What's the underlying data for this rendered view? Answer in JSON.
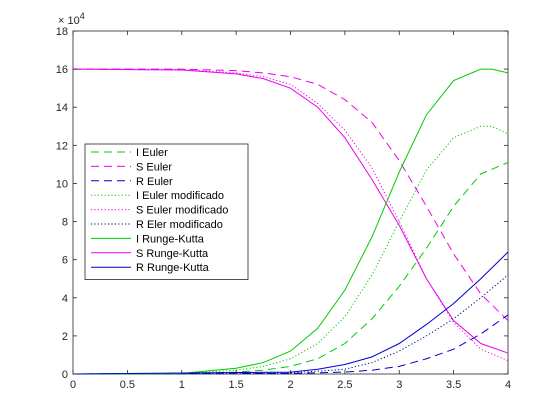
{
  "chart_data": {
    "type": "line",
    "title": "",
    "xlabel": "",
    "ylabel": "",
    "y_exponent_label": "× 10",
    "y_exponent_power": "4",
    "xlim": [
      0,
      4
    ],
    "ylim": [
      0,
      18
    ],
    "xticks": [
      "0",
      "0.5",
      "1",
      "1.5",
      "2",
      "2.5",
      "3",
      "3.5",
      "4"
    ],
    "yticks": [
      "0",
      "2",
      "4",
      "6",
      "8",
      "10",
      "12",
      "14",
      "16",
      "18"
    ],
    "grid": false,
    "legend_position": "center-left",
    "series": [
      {
        "name": "I Euler",
        "color": "#00cc00",
        "style": "dashed",
        "x": [
          0,
          1,
          1.5,
          1.75,
          2,
          2.25,
          2.5,
          2.75,
          3,
          3.25,
          3.5,
          3.75,
          4
        ],
        "y": [
          0,
          0.02,
          0.1,
          0.2,
          0.4,
          0.8,
          1.6,
          2.9,
          4.6,
          6.6,
          8.8,
          10.5,
          11.1
        ]
      },
      {
        "name": "S Euler",
        "color": "#ee00ee",
        "style": "dashed",
        "x": [
          0,
          1,
          1.5,
          1.75,
          2,
          2.25,
          2.5,
          2.75,
          3,
          3.25,
          3.5,
          3.75,
          4
        ],
        "y": [
          16,
          16,
          15.92,
          15.8,
          15.6,
          15.2,
          14.4,
          13.2,
          11.2,
          8.8,
          6.3,
          4.2,
          2.8
        ]
      },
      {
        "name": "R Euler",
        "color": "#0000cc",
        "style": "dashed",
        "x": [
          0,
          2,
          2.5,
          2.75,
          3,
          3.25,
          3.5,
          3.75,
          4
        ],
        "y": [
          0,
          0.03,
          0.1,
          0.2,
          0.4,
          0.8,
          1.3,
          2.1,
          3.1
        ]
      },
      {
        "name": "I Euler modificado",
        "color": "#00cc00",
        "style": "dotted",
        "x": [
          0,
          1,
          1.5,
          1.75,
          2,
          2.25,
          2.5,
          2.75,
          3,
          3.25,
          3.5,
          3.75,
          3.85,
          4
        ],
        "y": [
          0,
          0.02,
          0.2,
          0.4,
          0.8,
          1.6,
          3.0,
          5.2,
          8.0,
          10.7,
          12.4,
          13.0,
          13.0,
          12.6
        ]
      },
      {
        "name": "S Euler modificado",
        "color": "#ee00ee",
        "style": "dotted",
        "x": [
          0,
          1,
          1.5,
          1.75,
          2,
          2.25,
          2.5,
          2.75,
          3,
          3.25,
          3.5,
          3.75,
          4
        ],
        "y": [
          16,
          15.98,
          15.8,
          15.6,
          15.2,
          14.2,
          12.8,
          10.8,
          8.0,
          5.0,
          2.7,
          1.3,
          0.7
        ]
      },
      {
        "name": "R Eler modificado",
        "color": "#000080",
        "style": "dotted",
        "x": [
          0,
          2,
          2.5,
          2.75,
          3,
          3.25,
          3.5,
          3.75,
          4
        ],
        "y": [
          0,
          0.05,
          0.25,
          0.6,
          1.2,
          2.0,
          2.9,
          4.0,
          5.2
        ]
      },
      {
        "name": "I Runge-Kutta",
        "color": "#00cc00",
        "style": "solid",
        "x": [
          0,
          1,
          1.5,
          1.75,
          2,
          2.25,
          2.5,
          2.75,
          3,
          3.25,
          3.5,
          3.75,
          3.85,
          4
        ],
        "y": [
          0,
          0.03,
          0.3,
          0.6,
          1.2,
          2.4,
          4.4,
          7.2,
          10.6,
          13.6,
          15.4,
          16.0,
          16.0,
          15.8
        ]
      },
      {
        "name": "S Runge-Kutta",
        "color": "#ee00ee",
        "style": "solid",
        "x": [
          0,
          1,
          1.5,
          1.75,
          2,
          2.25,
          2.5,
          2.75,
          3,
          3.25,
          3.5,
          3.75,
          4
        ],
        "y": [
          16,
          15.95,
          15.75,
          15.5,
          15.0,
          14.0,
          12.4,
          10.2,
          7.8,
          5.0,
          2.8,
          1.6,
          1.1
        ]
      },
      {
        "name": "R Runge-Kutta",
        "color": "#0000cc",
        "style": "solid",
        "x": [
          0,
          2,
          2.25,
          2.5,
          2.75,
          3,
          3.25,
          3.5,
          3.75,
          4
        ],
        "y": [
          0,
          0.1,
          0.25,
          0.5,
          0.9,
          1.6,
          2.6,
          3.7,
          5.0,
          6.4
        ]
      }
    ]
  }
}
